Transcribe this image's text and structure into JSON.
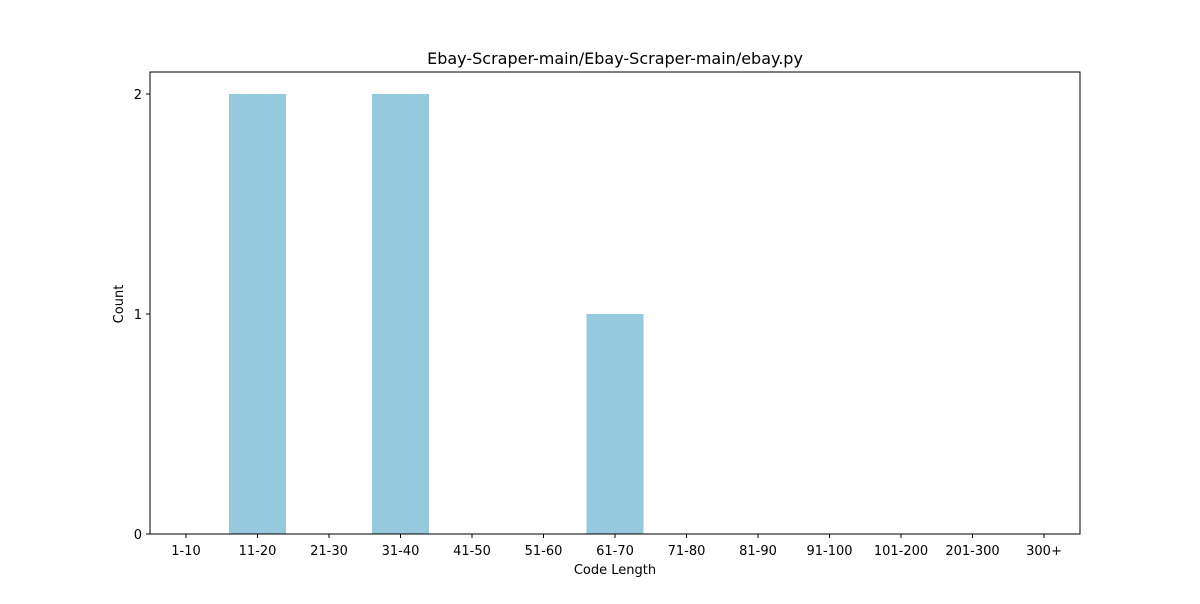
{
  "chart_data": {
    "type": "bar",
    "title": "Ebay-Scraper-main/Ebay-Scraper-main/ebay.py",
    "xlabel": "Code Length",
    "ylabel": "Count",
    "categories": [
      "1-10",
      "11-20",
      "21-30",
      "31-40",
      "41-50",
      "51-60",
      "61-70",
      "71-80",
      "81-90",
      "91-100",
      "101-200",
      "201-300",
      "300+"
    ],
    "values": [
      0,
      2,
      0,
      2,
      0,
      0,
      1,
      0,
      0,
      0,
      0,
      0,
      0
    ],
    "ylim": [
      0,
      2.1
    ],
    "yticks": [
      0,
      1,
      2
    ],
    "grid": false,
    "legend": "none",
    "bar_color": "#96c9de"
  }
}
